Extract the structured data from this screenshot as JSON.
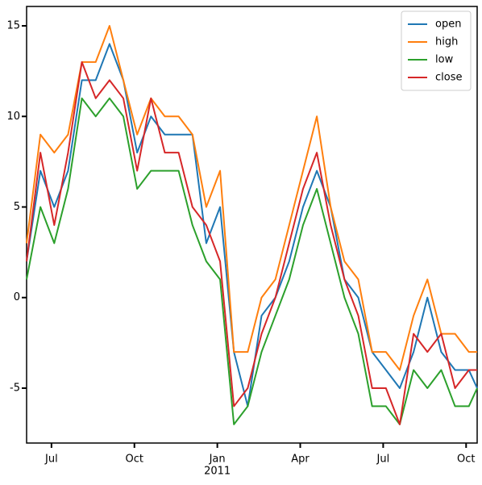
{
  "chart_data": {
    "type": "line",
    "x": [
      -0.9,
      -0.4,
      0.1,
      0.6,
      1.1,
      1.6,
      2.1,
      2.6,
      3.1,
      3.6,
      4.1,
      4.6,
      5.1,
      5.6,
      6.1,
      6.6,
      7.1,
      7.6,
      8.1,
      8.6,
      9.1,
      9.6,
      10.1,
      10.6,
      11.1,
      11.6,
      12.1,
      12.6,
      13.1,
      13.6,
      14.1,
      14.6,
      15.1,
      15.4
    ],
    "series": [
      {
        "name": "open",
        "color": "#1f77b4",
        "values": [
          2,
          7,
          5,
          7,
          12,
          12,
          14,
          12,
          8,
          10,
          9,
          9,
          9,
          3,
          5,
          -3,
          -6,
          -1,
          0,
          2,
          5,
          7,
          5,
          1,
          0,
          -3,
          -4,
          -5,
          -3,
          0,
          -3,
          -4,
          -4,
          -5
        ]
      },
      {
        "name": "high",
        "color": "#ff7f0e",
        "values": [
          3,
          9,
          8,
          9,
          13,
          13,
          15,
          12,
          9,
          11,
          10,
          10,
          9,
          5,
          7,
          -3,
          -3,
          0,
          1,
          4,
          7,
          10,
          5,
          2,
          1,
          -3,
          -3,
          -4,
          -1,
          1,
          -2,
          -2,
          -3,
          -3
        ]
      },
      {
        "name": "low",
        "color": "#2ca02c",
        "values": [
          1,
          5,
          3,
          6,
          11,
          10,
          11,
          10,
          6,
          7,
          7,
          7,
          4,
          2,
          1,
          -7,
          -6,
          -3,
          -1,
          1,
          4,
          6,
          3,
          0,
          -2,
          -6,
          -6,
          -7,
          -4,
          -5,
          -4,
          -6,
          -6,
          -5
        ]
      },
      {
        "name": "close",
        "color": "#d62728",
        "values": [
          2,
          8,
          4,
          8,
          13,
          11,
          12,
          11,
          7,
          11,
          8,
          8,
          5,
          4,
          2,
          -6,
          -5,
          -2,
          0,
          3,
          6,
          8,
          4,
          1,
          -1,
          -5,
          -5,
          -7,
          -2,
          -3,
          -2,
          -5,
          -4,
          -4
        ]
      }
    ],
    "xlim": [
      -0.9,
      15.4
    ],
    "xticks": [
      {
        "value": 0,
        "label": "Jul"
      },
      {
        "value": 3,
        "label": "Oct"
      },
      {
        "value": 6,
        "label": "Jan"
      },
      {
        "value": 9,
        "label": "Apr"
      },
      {
        "value": 12,
        "label": "Jul"
      },
      {
        "value": 15,
        "label": "Oct"
      }
    ],
    "x_year_label": {
      "value": 6,
      "label": "2011"
    },
    "ylim": [
      -8.03,
      16.07
    ],
    "yticks": [
      -5,
      0,
      5,
      10,
      15
    ],
    "legend": "upper right"
  }
}
